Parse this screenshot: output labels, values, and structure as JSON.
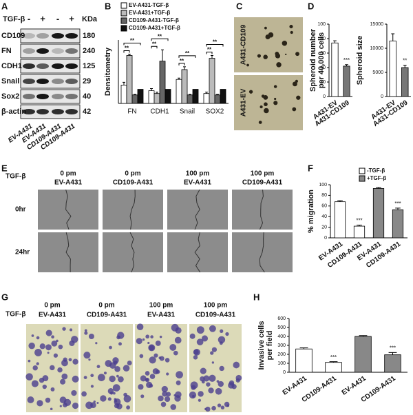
{
  "panel_labels": [
    "A",
    "B",
    "C",
    "D",
    "E",
    "F",
    "G",
    "H"
  ],
  "blot": {
    "treatment_label": "TGF-β",
    "signs": [
      "-",
      "+",
      "-",
      "+"
    ],
    "unit_label": "KDa",
    "proteins": [
      "CD109",
      "FN",
      "CDH1",
      "Snail",
      "Sox2",
      "β-actin"
    ],
    "sizes": [
      "180",
      "240",
      "125",
      "29",
      "40",
      "42"
    ],
    "lanes": [
      "EV-A431",
      "EV-A431",
      "CD109-A431",
      "CD109-A431"
    ]
  },
  "spheroid_images": {
    "labels": [
      "A431-CD109",
      "A431-EV"
    ]
  },
  "migration_images": {
    "treatment_label": "TGF-β",
    "columns": [
      {
        "dose": "0 pm",
        "cell": "EV-A431"
      },
      {
        "dose": "0 pm",
        "cell": "CD109-A431"
      },
      {
        "dose": "100 pm",
        "cell": "EV-A431"
      },
      {
        "dose": "100 pm",
        "cell": "CD109-A431"
      }
    ],
    "rows": [
      "0hr",
      "24hr"
    ]
  },
  "invasion_images": {
    "treatment_label": "TGF-β",
    "columns": [
      {
        "dose": "0 pm",
        "cell": "EV-A431"
      },
      {
        "dose": "0 pm",
        "cell": "CD109-A431"
      },
      {
        "dose": "100 pm",
        "cell": "EV-A431"
      },
      {
        "dose": "100 pm",
        "cell": "CD109-A431"
      }
    ]
  },
  "chart_data": [
    {
      "type": "bar",
      "y_label": "Densitometry",
      "categories": [
        "FN",
        "CDH1",
        "Snail",
        "SOX2"
      ],
      "ylim": [
        0,
        4.5
      ],
      "series": [
        {
          "name": "EV-A431-TGF-β",
          "color": "#ffffff",
          "values": [
            1.3,
            0.9,
            1.7,
            0.7
          ],
          "errors": [
            0.2,
            0.15,
            0.1,
            0.1
          ]
        },
        {
          "name": "EV-A431+TGF-β",
          "color": "#bbbbbb",
          "values": [
            3.4,
            0.7,
            2.4,
            3.2
          ],
          "errors": [
            0.1,
            0.1,
            0.2,
            0.2
          ]
        },
        {
          "name": "CD109-A431-TGF-β",
          "color": "#666666",
          "values": [
            0.6,
            3.0,
            0.6,
            0.6
          ],
          "errors": [
            0.05,
            0.8,
            0.05,
            0.05
          ]
        },
        {
          "name": "CD109-A431+TGF-β",
          "color": "#111111",
          "values": [
            1.0,
            1.0,
            1.0,
            1.0
          ]
        }
      ],
      "significance": [
        [
          "**",
          "**"
        ],
        [
          "**",
          "**"
        ],
        [
          "**",
          "**"
        ],
        [
          "**",
          "**"
        ]
      ]
    },
    {
      "type": "bar",
      "y_label": [
        "Spheroid number",
        "per 40,000 cells"
      ],
      "categories": [
        "A431-EV",
        "A431-CD109"
      ],
      "values": [
        74,
        42
      ],
      "errors": [
        3,
        2
      ],
      "colors": [
        "#ffffff",
        "#777777"
      ],
      "ylim": [
        0,
        100
      ],
      "yticks": [
        0,
        20,
        40,
        60,
        80,
        100
      ],
      "significance": [
        null,
        "***"
      ]
    },
    {
      "type": "bar",
      "y_label": "Spheroid size",
      "categories": [
        "A431-EV",
        "A431-CD109"
      ],
      "values": [
        11500,
        6000
      ],
      "errors": [
        1500,
        500
      ],
      "colors": [
        "#ffffff",
        "#777777"
      ],
      "ylim": [
        0,
        15000
      ],
      "yticks": [
        0,
        5000,
        10000,
        15000
      ],
      "significance": [
        null,
        "**"
      ]
    },
    {
      "type": "bar",
      "y_label": "% migration",
      "categories": [
        "EV-A431",
        "CD109-A431",
        "EV-A431",
        "CD109-A431"
      ],
      "ylim": [
        0,
        100
      ],
      "yticks": [
        0,
        20,
        40,
        60,
        80,
        100
      ],
      "series": [
        {
          "name": "-TGF-β",
          "color": "#ffffff",
          "values": [
            68,
            22,
            null,
            null
          ],
          "errors": [
            2,
            2,
            null,
            null
          ]
        },
        {
          "name": "+TGF-β",
          "color": "#888888",
          "values": [
            null,
            null,
            93,
            53
          ],
          "errors": [
            null,
            null,
            2,
            3
          ]
        }
      ],
      "significance": [
        null,
        "***",
        null,
        "***"
      ]
    },
    {
      "type": "bar",
      "y_label": [
        "Invasive cells",
        "per field"
      ],
      "categories": [
        "EV-A431",
        "CD109-A431",
        "EV-A431",
        "CD109-A431"
      ],
      "values": [
        260,
        110,
        400,
        195
      ],
      "errors": [
        12,
        8,
        10,
        25
      ],
      "colors": [
        "#ffffff",
        "#ffffff",
        "#888888",
        "#888888"
      ],
      "ylim": [
        0,
        600
      ],
      "yticks": [
        0,
        100,
        200,
        300,
        400,
        500,
        600
      ],
      "significance": [
        null,
        "***",
        null,
        "***"
      ]
    }
  ]
}
